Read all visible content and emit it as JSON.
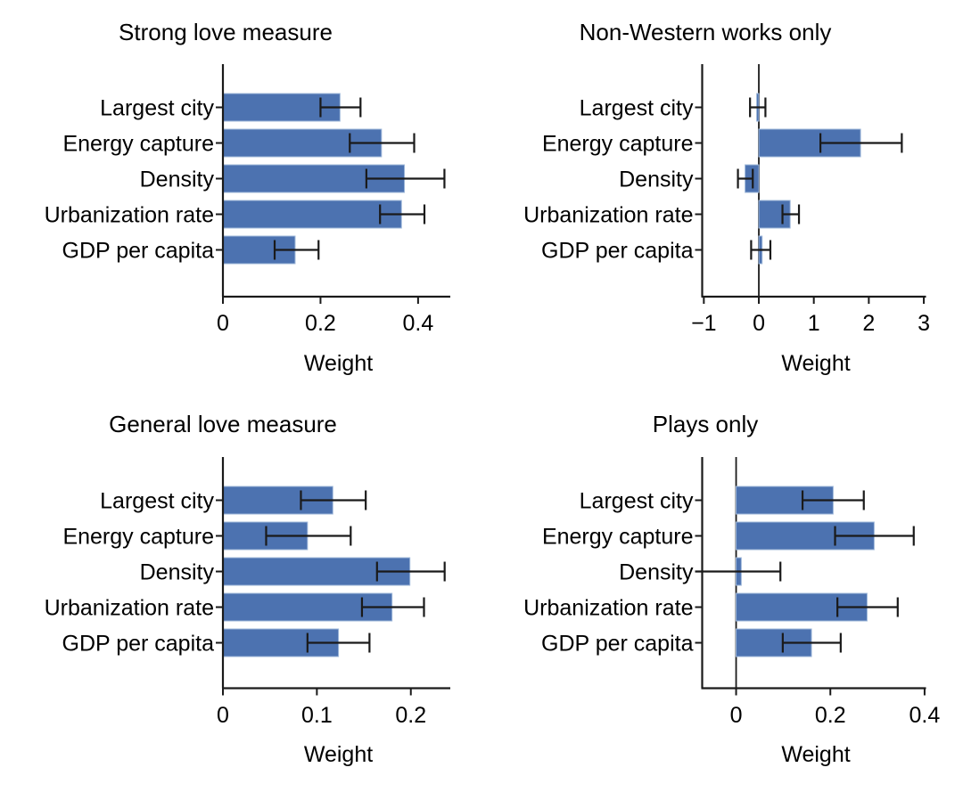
{
  "figure": {
    "background": "#ffffff",
    "bar_color": "#4c72b0",
    "bar_edge_color": "#9fb8da",
    "axis_color": "#1a1a1a",
    "error_color": "#1a1a1a",
    "text_color": "#000000"
  },
  "chart_data": [
    {
      "type": "bar",
      "orientation": "horizontal",
      "title": "Strong love measure",
      "xlabel": "Weight",
      "categories": [
        "Largest city",
        "Energy capture",
        "Density",
        "Urbanization rate",
        "GDP per capita"
      ],
      "values": [
        0.24,
        0.325,
        0.372,
        0.366,
        0.148
      ],
      "error_low": [
        0.2,
        0.26,
        0.294,
        0.322,
        0.106
      ],
      "error_high": [
        0.282,
        0.392,
        0.454,
        0.413,
        0.196
      ],
      "xlim": [
        0,
        0.466
      ],
      "xticks": [
        0,
        0.2,
        0.4
      ],
      "xtick_labels": [
        "0",
        "0.2",
        "0.4"
      ],
      "zero_line": false,
      "grid": false,
      "legend": null
    },
    {
      "type": "bar",
      "orientation": "horizontal",
      "title": "Non-Western works only",
      "xlabel": "Weight",
      "categories": [
        "Largest city",
        "Energy capture",
        "Density",
        "Urbanization rate",
        "GDP per capita"
      ],
      "values": [
        -0.04,
        1.85,
        -0.25,
        0.57,
        0.06
      ],
      "error_low": [
        -0.16,
        1.12,
        -0.38,
        0.43,
        -0.14
      ],
      "error_high": [
        0.12,
        2.6,
        -0.11,
        0.73,
        0.21
      ],
      "xlim": [
        -1.03,
        3.04
      ],
      "xticks": [
        -1,
        0,
        1,
        2,
        3
      ],
      "xtick_labels": [
        "−1",
        "0",
        "1",
        "2",
        "3"
      ],
      "zero_line": true,
      "grid": false,
      "legend": null
    },
    {
      "type": "bar",
      "orientation": "horizontal",
      "title": "General love measure",
      "xlabel": "Weight",
      "categories": [
        "Largest city",
        "Energy capture",
        "Density",
        "Urbanization rate",
        "GDP per capita"
      ],
      "values": [
        0.117,
        0.09,
        0.199,
        0.18,
        0.123
      ],
      "error_low": [
        0.083,
        0.046,
        0.164,
        0.148,
        0.09
      ],
      "error_high": [
        0.152,
        0.136,
        0.236,
        0.214,
        0.156
      ],
      "xlim": [
        0,
        0.242
      ],
      "xticks": [
        0,
        0.1,
        0.2
      ],
      "xtick_labels": [
        "0",
        "0.1",
        "0.2"
      ],
      "zero_line": false,
      "grid": false,
      "legend": null
    },
    {
      "type": "bar",
      "orientation": "horizontal",
      "title": "Plays only",
      "xlabel": "Weight",
      "categories": [
        "Largest city",
        "Energy capture",
        "Density",
        "Urbanization rate",
        "GDP per capita"
      ],
      "values": [
        0.206,
        0.293,
        0.011,
        0.278,
        0.16
      ],
      "error_low": [
        0.141,
        0.21,
        -0.087,
        0.215,
        0.099
      ],
      "error_high": [
        0.271,
        0.377,
        0.094,
        0.343,
        0.222
      ],
      "error_cap_low_hidden": [
        2
      ],
      "xlim": [
        -0.072,
        0.403
      ],
      "xticks": [
        0,
        0.2,
        0.4
      ],
      "xtick_labels": [
        "0",
        "0.2",
        "0.4"
      ],
      "zero_line": true,
      "grid": false,
      "legend": null
    }
  ]
}
